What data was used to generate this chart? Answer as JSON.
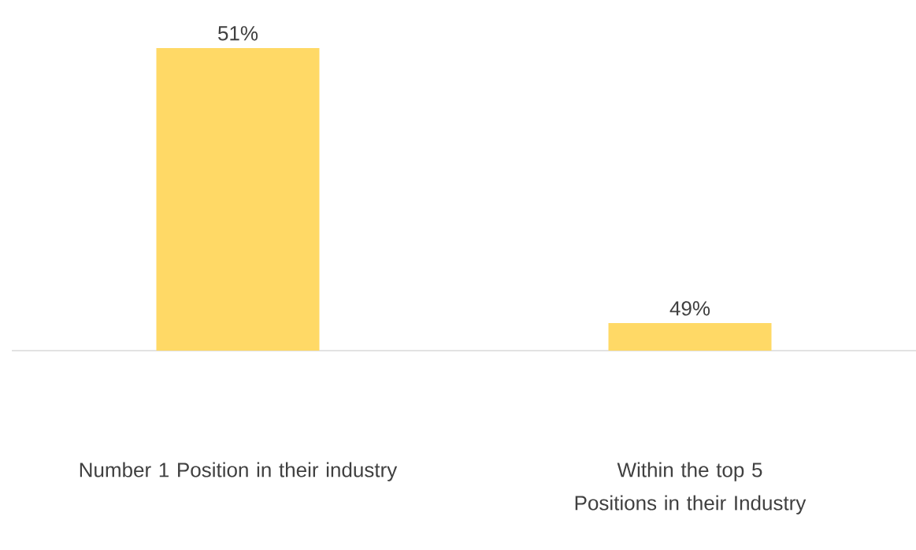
{
  "chart_data": {
    "type": "bar",
    "categories": [
      "Number 1 Position in their industry",
      "Within the top 5 Positions in their Industry"
    ],
    "values": [
      51,
      49
    ],
    "value_labels": [
      "51%",
      "49%"
    ],
    "color": "#ffd966",
    "ylim": [
      48.8,
      51
    ],
    "tick_labels": "x"
  }
}
